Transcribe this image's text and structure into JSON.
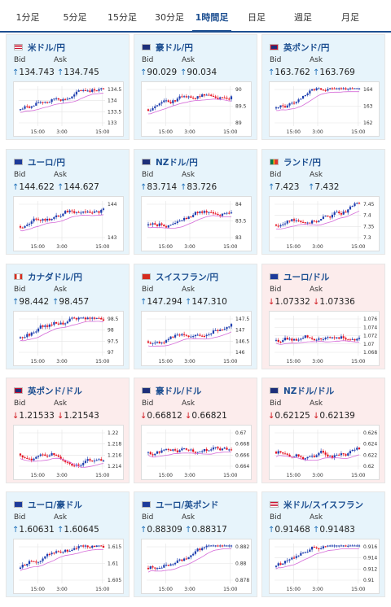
{
  "tabs": [
    "1分足",
    "5分足",
    "15分足",
    "30分足",
    "1時間足",
    "日足",
    "週足",
    "月足"
  ],
  "active_tab": 4,
  "labels": {
    "bid": "Bid",
    "ask": "Ask"
  },
  "colors": {
    "up_card": "#e7f4fb",
    "down_card": "#fcecec",
    "bull": "#1f3fb0",
    "bear": "#e5101f",
    "ma": "#d56ad8"
  },
  "x_ticks": [
    "15:00",
    "3:00",
    "15:00"
  ],
  "cards": [
    {
      "title": "米ドル/円",
      "flag": "us",
      "dir": "up",
      "bid": "134.743",
      "ask": "134.745",
      "y_ticks": [
        "134.5",
        "134",
        "133.5",
        "133"
      ]
    },
    {
      "title": "豪ドル/円",
      "flag": "au",
      "dir": "up",
      "bid": "90.029",
      "ask": "90.034",
      "y_ticks": [
        "90",
        "89.5",
        "89"
      ]
    },
    {
      "title": "英ポンド/円",
      "flag": "gb",
      "dir": "up",
      "bid": "163.762",
      "ask": "163.769",
      "y_ticks": [
        "164",
        "163",
        "162"
      ]
    },
    {
      "title": "ユーロ/円",
      "flag": "eu",
      "dir": "up",
      "bid": "144.622",
      "ask": "144.627",
      "y_ticks": [
        "144",
        "143"
      ]
    },
    {
      "title": "NZドル/円",
      "flag": "nz",
      "dir": "up",
      "bid": "83.714",
      "ask": "83.726",
      "y_ticks": [
        "84",
        "83.5",
        "83"
      ]
    },
    {
      "title": "ランド/円",
      "flag": "za",
      "dir": "up",
      "bid": "7.423",
      "ask": "7.432",
      "y_ticks": [
        "7.45",
        "7.4",
        "7.35",
        "7.3"
      ]
    },
    {
      "title": "カナダドル/円",
      "flag": "ca",
      "dir": "up",
      "bid": "98.442",
      "ask": "98.457",
      "y_ticks": [
        "98.5",
        "98",
        "97.5",
        "97"
      ]
    },
    {
      "title": "スイスフラン/円",
      "flag": "ch",
      "dir": "up",
      "bid": "147.294",
      "ask": "147.310",
      "y_ticks": [
        "147.5",
        "147",
        "146.5",
        "146"
      ]
    },
    {
      "title": "ユーロ/ドル",
      "flag": "eu",
      "dir": "down",
      "bid": "1.07332",
      "ask": "1.07336",
      "y_ticks": [
        "1.076",
        "1.074",
        "1.072",
        "1.07",
        "1.068"
      ]
    },
    {
      "title": "英ポンド/ドル",
      "flag": "gb",
      "dir": "down",
      "bid": "1.21533",
      "ask": "1.21543",
      "y_ticks": [
        "1.22",
        "1.218",
        "1.216",
        "1.214"
      ]
    },
    {
      "title": "豪ドル/ドル",
      "flag": "au",
      "dir": "down",
      "bid": "0.66812",
      "ask": "0.66821",
      "y_ticks": [
        "0.67",
        "0.668",
        "0.666",
        "0.664"
      ]
    },
    {
      "title": "NZドル/ドル",
      "flag": "nz",
      "dir": "down",
      "bid": "0.62125",
      "ask": "0.62139",
      "y_ticks": [
        "0.626",
        "0.624",
        "0.622",
        "0.62"
      ]
    },
    {
      "title": "ユーロ/豪ドル",
      "flag": "eu",
      "dir": "up",
      "bid": "1.60631",
      "ask": "1.60645",
      "y_ticks": [
        "1.615",
        "1.61",
        "1.605"
      ]
    },
    {
      "title": "ユーロ/英ポンド",
      "flag": "eu",
      "dir": "up",
      "bid": "0.88309",
      "ask": "0.88317",
      "y_ticks": [
        "0.882",
        "0.88",
        "0.878"
      ]
    },
    {
      "title": "米ドル/スイスフラン",
      "flag": "us",
      "dir": "up",
      "bid": "0.91468",
      "ask": "0.91483",
      "y_ticks": [
        "0.916",
        "0.914",
        "0.912",
        "0.91"
      ]
    }
  ]
}
